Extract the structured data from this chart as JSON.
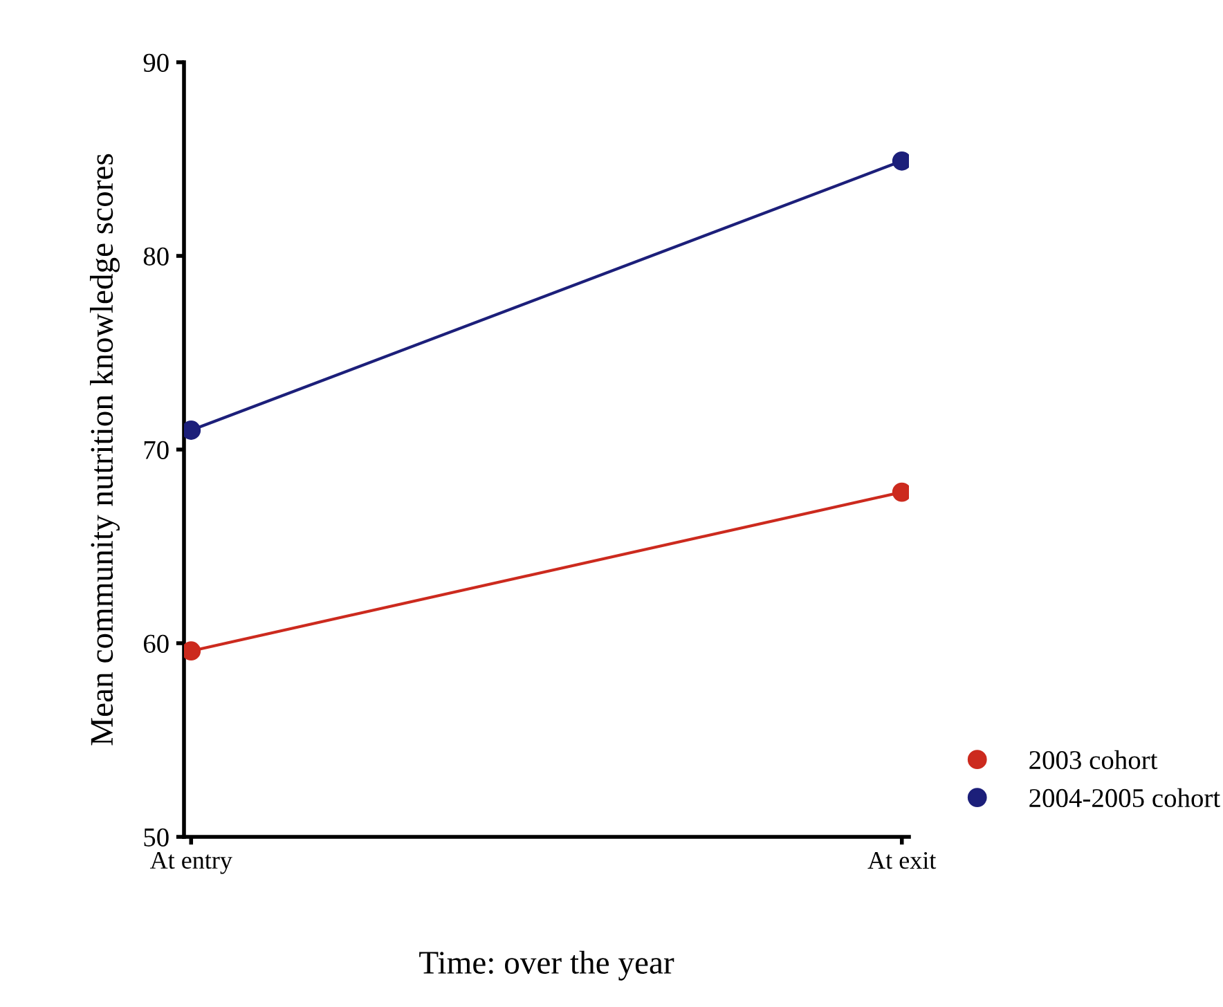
{
  "chart_data": {
    "type": "line",
    "xlabel": "Time: over the year",
    "ylabel": "Mean community nutrition knowledge scores",
    "categories": [
      "At entry",
      "At exit"
    ],
    "series": [
      {
        "name": "2003 cohort",
        "color": "#cc2a1e",
        "values": [
          59.6,
          67.8
        ]
      },
      {
        "name": "2004-2005 cohort",
        "color": "#1c1f7a",
        "values": [
          71.0,
          84.9
        ]
      }
    ],
    "ylim": [
      50,
      90
    ],
    "yticks": [
      50,
      60,
      70,
      80,
      90
    ],
    "grid": false,
    "legend": "bottom right",
    "marker": "circle",
    "line_style": "solid"
  }
}
